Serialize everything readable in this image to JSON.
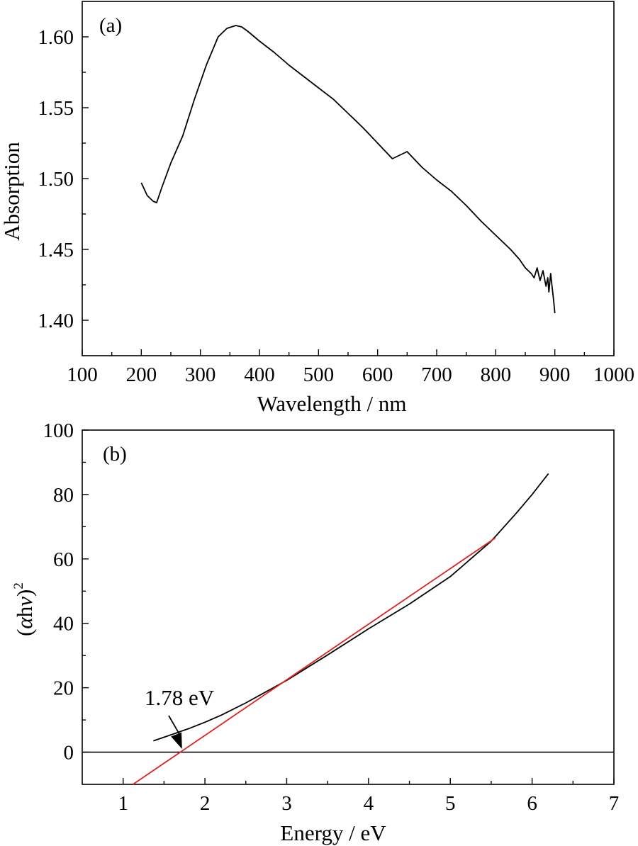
{
  "chart_data": [
    {
      "type": "line",
      "panel_label": "(a)",
      "xlabel": "Wavelength / nm",
      "ylabel": "Absorption",
      "xlim": [
        100,
        1000
      ],
      "ylim": [
        1.375,
        1.625
      ],
      "x_ticks": [
        100,
        200,
        300,
        400,
        500,
        600,
        700,
        800,
        900,
        1000
      ],
      "x_tick_labels": [
        "100",
        "200",
        "300",
        "400",
        "500",
        "600",
        "700",
        "800",
        "900",
        "1000"
      ],
      "y_ticks": [
        1.4,
        1.45,
        1.5,
        1.55,
        1.6
      ],
      "y_tick_labels": [
        "1.40",
        "1.45",
        "1.50",
        "1.55",
        "1.60"
      ],
      "grid": false,
      "series": [
        {
          "color": "#000000",
          "x": [
            200,
            210,
            220,
            226,
            235,
            250,
            270,
            290,
            310,
            330,
            345,
            360,
            370,
            380,
            400,
            425,
            450,
            475,
            500,
            525,
            550,
            575,
            600,
            625,
            650,
            675,
            700,
            725,
            750,
            775,
            800,
            825,
            840,
            850,
            860,
            865,
            870,
            875,
            880,
            885,
            888,
            890,
            893,
            895,
            898,
            900
          ],
          "y": [
            1.497,
            1.488,
            1.484,
            1.483,
            1.494,
            1.511,
            1.53,
            1.556,
            1.58,
            1.6,
            1.606,
            1.608,
            1.607,
            1.604,
            1.597,
            1.589,
            1.58,
            1.572,
            1.564,
            1.556,
            1.546,
            1.536,
            1.525,
            1.514,
            1.519,
            1.508,
            1.499,
            1.491,
            1.481,
            1.47,
            1.46,
            1.45,
            1.443,
            1.437,
            1.433,
            1.43,
            1.437,
            1.428,
            1.435,
            1.424,
            1.43,
            1.42,
            1.433,
            1.425,
            1.414,
            1.405
          ]
        }
      ]
    },
    {
      "type": "line",
      "panel_label": "(b)",
      "xlabel": "Energy / eV",
      "ylabel_prefix": "(",
      "ylabel_alpha": "α",
      "ylabel_h": "h",
      "ylabel_nu": "v",
      "ylabel_suffix": ")",
      "ylabel_sup": "2",
      "xlim": [
        0.5,
        7
      ],
      "ylim": [
        -10,
        100
      ],
      "x_ticks": [
        1,
        2,
        3,
        4,
        5,
        6,
        7
      ],
      "x_tick_labels": [
        "1",
        "2",
        "3",
        "4",
        "5",
        "6",
        "7"
      ],
      "y_ticks": [
        0,
        20,
        40,
        60,
        80,
        100
      ],
      "y_tick_labels": [
        "0",
        "20",
        "40",
        "60",
        "80",
        "100"
      ],
      "grid": false,
      "series": [
        {
          "color": "#000000",
          "x": [
            1.37,
            1.6,
            1.8,
            2.0,
            2.2,
            2.5,
            2.8,
            3.0,
            3.5,
            4.0,
            4.5,
            5.0,
            5.5,
            5.8,
            6.0,
            6.2
          ],
          "y": [
            3.5,
            5.5,
            7.3,
            9.3,
            11.5,
            15.3,
            19.5,
            22.3,
            30.2,
            38.3,
            46.0,
            54.5,
            65.5,
            74.0,
            80.0,
            86.5
          ]
        }
      ],
      "fit_line": {
        "color": "#e0211f",
        "x": [
          1.12,
          5.55
        ],
        "y": [
          -10,
          66.5
        ]
      },
      "zero_line_y": 0,
      "annotation": {
        "text": "1.78 eV",
        "arrow_to": [
          1.72,
          1.0
        ]
      }
    }
  ]
}
